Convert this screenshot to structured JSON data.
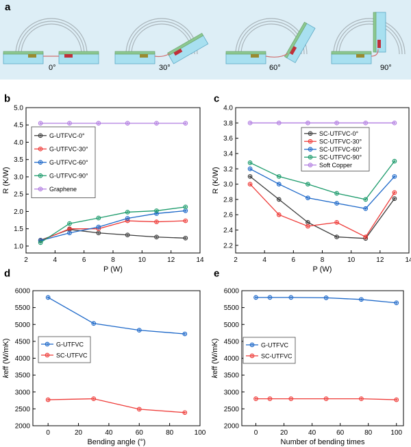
{
  "panel_a": {
    "label": "a",
    "angles": [
      "0°",
      "30°",
      "60°",
      "90°"
    ]
  },
  "colors": {
    "black": "#3a3a3a",
    "red": "#ee3a37",
    "blue": "#1a66c8",
    "green": "#1a9a6a",
    "purple": "#b07be0",
    "panel_bg": "#ddeef6"
  },
  "chart_data": [
    {
      "id": "b",
      "label": "b",
      "type": "line",
      "xlabel": "P (W)",
      "ylabel": "R (K/W)",
      "xlim": [
        2,
        14
      ],
      "ylim": [
        0.8,
        5.0
      ],
      "xticks": [
        2,
        4,
        6,
        8,
        10,
        12,
        14
      ],
      "yticks": [
        "1.0",
        "1.5",
        "2.0",
        "2.5",
        "3.0",
        "3.5",
        "4.0",
        "4.5",
        "5.0"
      ],
      "x": [
        3,
        5,
        7,
        9,
        11,
        13
      ],
      "legend_position": "upper-left",
      "series": [
        {
          "name": "G-UTFVC-0°",
          "color": "black",
          "values": [
            1.17,
            1.48,
            1.38,
            1.32,
            1.26,
            1.23
          ]
        },
        {
          "name": "G-UTFVC-30°",
          "color": "red",
          "values": [
            1.15,
            1.5,
            1.5,
            1.73,
            1.7,
            1.73
          ]
        },
        {
          "name": "G-UTFVC-60°",
          "color": "blue",
          "values": [
            1.16,
            1.38,
            1.55,
            1.8,
            1.94,
            2.02
          ]
        },
        {
          "name": "G-UTFVC-90°",
          "color": "green",
          "values": [
            1.1,
            1.65,
            1.81,
            1.98,
            2.02,
            2.13
          ]
        },
        {
          "name": "Graphene",
          "color": "purple",
          "values": [
            4.55,
            4.55,
            4.55,
            4.55,
            4.55,
            4.55
          ]
        }
      ]
    },
    {
      "id": "c",
      "label": "c",
      "type": "line",
      "xlabel": "P (W)",
      "ylabel": "R (K/W)",
      "xlim": [
        2,
        14
      ],
      "ylim": [
        2.1,
        4.0
      ],
      "xticks": [
        2,
        4,
        6,
        8,
        10,
        12,
        14
      ],
      "yticks": [
        "2.2",
        "2.4",
        "2.6",
        "2.8",
        "3.0",
        "3.2",
        "3.4",
        "3.6",
        "3.8",
        "4.0"
      ],
      "x": [
        3,
        5,
        7,
        9,
        11,
        13
      ],
      "legend_position": "upper-right",
      "series": [
        {
          "name": "SC-UTFVC-0°",
          "color": "black",
          "values": [
            3.1,
            2.8,
            2.5,
            2.31,
            2.29,
            2.81
          ]
        },
        {
          "name": "SC-UTFVC-30°",
          "color": "red",
          "values": [
            3.0,
            2.6,
            2.45,
            2.5,
            2.31,
            2.89
          ]
        },
        {
          "name": "SC-UTFVC-60°",
          "color": "blue",
          "values": [
            3.2,
            3.0,
            2.82,
            2.75,
            2.68,
            3.1
          ]
        },
        {
          "name": "SC-UTFVC-90°",
          "color": "green",
          "values": [
            3.28,
            3.1,
            3.0,
            2.88,
            2.8,
            3.3
          ]
        },
        {
          "name": "Soft Copper",
          "color": "purple",
          "values": [
            3.8,
            3.8,
            3.8,
            3.8,
            3.8,
            3.8
          ]
        }
      ]
    },
    {
      "id": "d",
      "label": "d",
      "type": "line",
      "xlabel": "Bending angle (°)",
      "ylabel_italic": "k",
      "ylabel_rest": "eff (W/mK)",
      "xlim": [
        -10,
        100
      ],
      "ylim": [
        2000,
        6000
      ],
      "xticks": [
        0,
        20,
        40,
        60,
        80,
        100
      ],
      "yticks": [
        "2000",
        "2500",
        "3000",
        "3500",
        "4000",
        "4500",
        "5000",
        "5500",
        "6000"
      ],
      "x": [
        0,
        30,
        60,
        90
      ],
      "legend_position": "center-left",
      "series": [
        {
          "name": "G-UTFVC",
          "color": "blue",
          "values": [
            5800,
            5030,
            4830,
            4720
          ]
        },
        {
          "name": "SC-UTFVC",
          "color": "red",
          "values": [
            2770,
            2800,
            2490,
            2390
          ]
        }
      ]
    },
    {
      "id": "e",
      "label": "e",
      "type": "line",
      "xlabel": "Number of bending times",
      "ylabel_italic": "k",
      "ylabel_rest": "eff (W/mK)",
      "xlim": [
        -10,
        105
      ],
      "ylim": [
        2000,
        6000
      ],
      "xticks": [
        0,
        20,
        40,
        60,
        80,
        100
      ],
      "yticks": [
        "2000",
        "2500",
        "3000",
        "3500",
        "4000",
        "4500",
        "5000",
        "5500",
        "6000"
      ],
      "x": [
        0,
        10,
        25,
        50,
        75,
        100
      ],
      "legend_position": "center-left",
      "series": [
        {
          "name": "G-UTFVC",
          "color": "blue",
          "values": [
            5800,
            5800,
            5800,
            5790,
            5740,
            5640
          ]
        },
        {
          "name": "SC-UTFVC",
          "color": "red",
          "values": [
            2800,
            2800,
            2800,
            2800,
            2800,
            2770
          ]
        }
      ]
    }
  ]
}
